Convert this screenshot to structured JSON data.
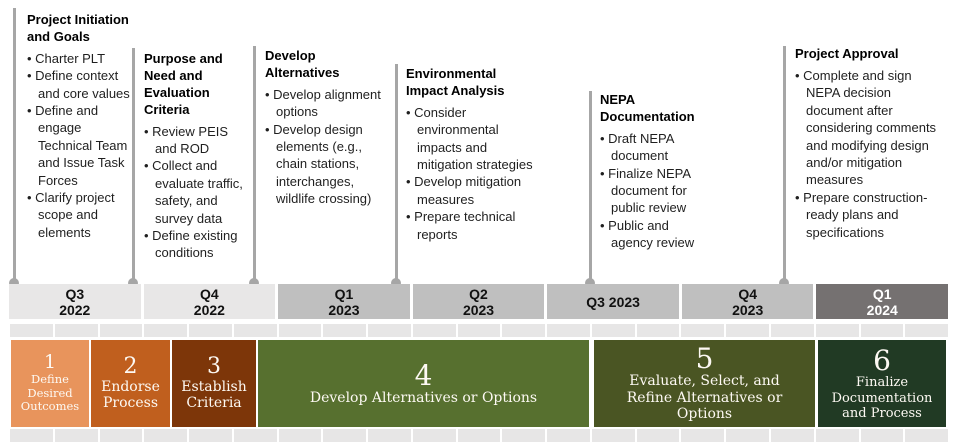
{
  "callouts": [
    {
      "title": "Project Initiation and Goals",
      "bullets": [
        "Charter PLT",
        "Define context and core values",
        "Define and engage Technical Team and Issue Task Forces",
        "Clarify project scope and elements"
      ]
    },
    {
      "title": "Purpose and Need and Evaluation Criteria",
      "bullets": [
        "Review PEIS and ROD",
        "Collect and evaluate traffic, safety, and survey data",
        "Define existing conditions"
      ]
    },
    {
      "title": "Develop Alternatives",
      "bullets": [
        "Develop alignment options",
        "Develop design elements (e.g., chain stations, interchanges, wildlife crossing)"
      ]
    },
    {
      "title": "Environmental Impact Analysis",
      "bullets": [
        "Consider environmental impacts and mitigation strategies",
        "Develop mitigation measures",
        "Prepare technical reports"
      ]
    },
    {
      "title": "NEPA Documentation",
      "bullets": [
        "Draft NEPA document",
        "Finalize NEPA document for public review",
        "Public and agency review"
      ]
    },
    {
      "title": "Project Approval",
      "bullets": [
        "Complete and sign NEPA decision document after considering comments and modifying design and/or mitigation measures",
        "Prepare construction-ready plans and specifications"
      ]
    }
  ],
  "timeline": {
    "quarters": [
      {
        "lines": [
          "Q3",
          "2022"
        ],
        "shade": "light"
      },
      {
        "lines": [
          "Q4",
          "2022"
        ],
        "shade": "light"
      },
      {
        "lines": [
          "Q1",
          "2023"
        ],
        "shade": "medium"
      },
      {
        "lines": [
          "Q2",
          "2023"
        ],
        "shade": "medium"
      },
      {
        "lines": [
          "Q3 2023"
        ],
        "shade": "medium"
      },
      {
        "lines": [
          "Q4",
          "2023"
        ],
        "shade": "medium"
      },
      {
        "lines": [
          "Q1",
          "2024"
        ],
        "shade": "dark"
      }
    ],
    "month_cells_per_strip": 21,
    "colors": {
      "quarter_light": "#E8E7E7",
      "quarter_medium": "#BFBFBF",
      "quarter_dark": "#757171",
      "month_cell": "#E7E6E6",
      "connector": "#A6A6A6"
    }
  },
  "phases": [
    {
      "number": "1",
      "label": "Define Desired Outcomes",
      "color": "#E8945C"
    },
    {
      "number": "2",
      "label": "Endorse Process",
      "color": "#C05F1E"
    },
    {
      "number": "3",
      "label": "Establish Criteria",
      "color": "#7D3609"
    },
    {
      "number": "4",
      "label": "Develop Alternatives or Options",
      "color": "#57702F"
    },
    {
      "number": "5",
      "label": "Evaluate, Select, and Refine Alternatives or Options",
      "color": "#4A5523"
    },
    {
      "number": "6",
      "label": "Finalize Documentation and Process",
      "color": "#213A24"
    }
  ]
}
